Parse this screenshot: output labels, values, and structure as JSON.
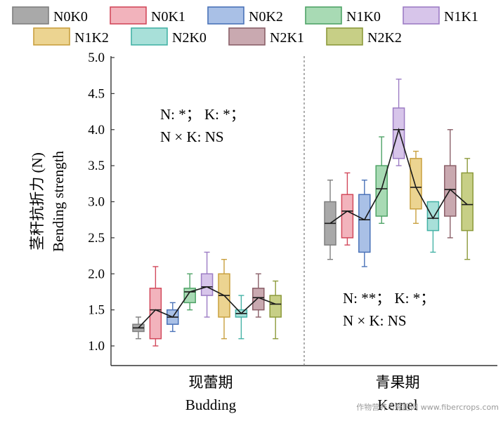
{
  "chart_data": {
    "type": "box",
    "ylabel_cn": "茎秆抗折力 (N)",
    "ylabel_en": "Bending strength",
    "ylim": [
      1.0,
      5.0
    ],
    "yticks": [
      "1.0",
      "1.5",
      "2.0",
      "2.5",
      "3.0",
      "3.5",
      "4.0",
      "4.5",
      "5.0"
    ],
    "series": [
      {
        "name": "N0K0",
        "color": "#7f7f7f",
        "fill": "#a9a9a9"
      },
      {
        "name": "N0K1",
        "color": "#d2495b",
        "fill": "#f2b3bc"
      },
      {
        "name": "N0K2",
        "color": "#4a72b8",
        "fill": "#a9c0e6"
      },
      {
        "name": "N1K0",
        "color": "#4fa367",
        "fill": "#a8dab4"
      },
      {
        "name": "N1K1",
        "color": "#9c7cc4",
        "fill": "#d7c5ea"
      },
      {
        "name": "N1K2",
        "color": "#c9a03f",
        "fill": "#ecd491"
      },
      {
        "name": "N2K0",
        "color": "#45b2a6",
        "fill": "#a8e0d9"
      },
      {
        "name": "N2K1",
        "color": "#8a5f68",
        "fill": "#c9a9b0"
      },
      {
        "name": "N2K2",
        "color": "#8c9a3b",
        "fill": "#c7cf86"
      }
    ],
    "groups": [
      {
        "name_cn": "现蕾期",
        "name_en": "Budding",
        "annotation_line1": "N: *；  K: *；",
        "annotation_line2": "N × K: NS",
        "boxes": [
          {
            "min": 1.1,
            "q1": 1.2,
            "median": 1.25,
            "q3": 1.3,
            "max": 1.4
          },
          {
            "min": 1.0,
            "q1": 1.1,
            "median": 1.5,
            "q3": 1.8,
            "max": 2.1
          },
          {
            "min": 1.2,
            "q1": 1.3,
            "median": 1.4,
            "q3": 1.5,
            "max": 1.6
          },
          {
            "min": 1.5,
            "q1": 1.6,
            "median": 1.75,
            "q3": 1.8,
            "max": 2.0
          },
          {
            "min": 1.4,
            "q1": 1.7,
            "median": 1.82,
            "q3": 2.0,
            "max": 2.3
          },
          {
            "min": 1.1,
            "q1": 1.4,
            "median": 1.7,
            "q3": 2.0,
            "max": 2.2
          },
          {
            "min": 1.1,
            "q1": 1.4,
            "median": 1.45,
            "q3": 1.5,
            "max": 1.7
          },
          {
            "min": 1.4,
            "q1": 1.5,
            "median": 1.67,
            "q3": 1.8,
            "max": 2.0
          },
          {
            "min": 1.1,
            "q1": 1.4,
            "median": 1.58,
            "q3": 1.7,
            "max": 1.9
          }
        ]
      },
      {
        "name_cn": "青果期",
        "name_en": "Kernel",
        "annotation_line1": "N: **；  K: *；",
        "annotation_line2": "N × K: NS",
        "boxes": [
          {
            "min": 2.2,
            "q1": 2.4,
            "median": 2.7,
            "q3": 3.0,
            "max": 3.3
          },
          {
            "min": 2.4,
            "q1": 2.5,
            "median": 2.87,
            "q3": 3.1,
            "max": 3.4
          },
          {
            "min": 2.1,
            "q1": 2.3,
            "median": 2.75,
            "q3": 3.1,
            "max": 3.3
          },
          {
            "min": 2.7,
            "q1": 2.8,
            "median": 3.18,
            "q3": 3.5,
            "max": 3.9
          },
          {
            "min": 3.5,
            "q1": 3.6,
            "median": 4.0,
            "q3": 4.3,
            "max": 4.7
          },
          {
            "min": 2.7,
            "q1": 2.9,
            "median": 3.2,
            "q3": 3.6,
            "max": 3.7
          },
          {
            "min": 2.3,
            "q1": 2.6,
            "median": 2.77,
            "q3": 3.0,
            "max": 3.0
          },
          {
            "min": 2.5,
            "q1": 2.8,
            "median": 3.17,
            "q3": 3.5,
            "max": 4.0
          },
          {
            "min": 2.2,
            "q1": 2.6,
            "median": 2.96,
            "q3": 3.4,
            "max": 3.6
          }
        ]
      }
    ]
  },
  "watermark": "作物营养与施肥网 www.fibercrops.com"
}
